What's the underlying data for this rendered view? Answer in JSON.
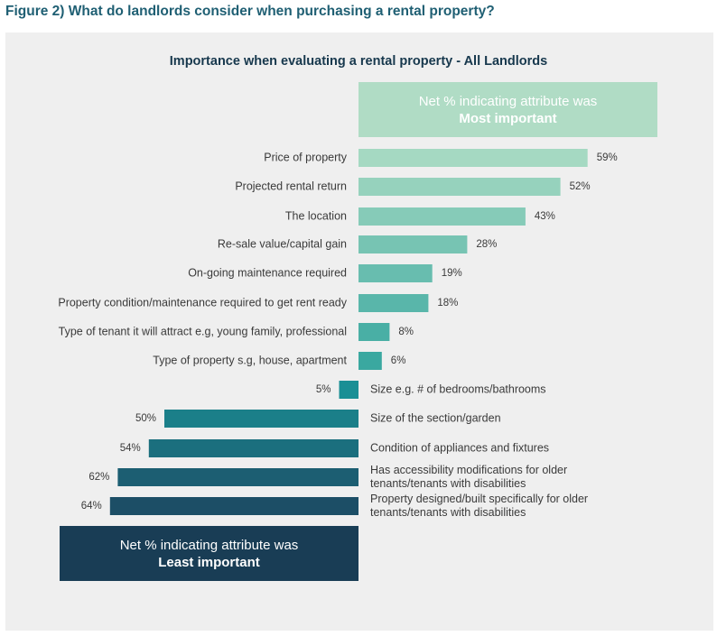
{
  "figure_title": "Figure 2) What do landlords consider when purchasing a rental property?",
  "chart_data": {
    "type": "bar",
    "orientation": "horizontal-diverging",
    "title": "Importance when evaluating a rental property - All Landlords",
    "legend": {
      "most_line1": "Net % indicating attribute was",
      "most_line2": "Most important",
      "least_line1": "Net % indicating attribute was",
      "least_line2": "Least important"
    },
    "unit": "%",
    "categories": [
      "Price of property",
      "Projected rental return",
      "The location",
      "Re-sale value/capital gain",
      "On-going maintenance required",
      "Property condition/maintenance required to get rent ready",
      "Type of tenant it will attract e.g, young family, professional",
      "Type of property s.g, house, apartment",
      "Size e.g. # of bedrooms/bathrooms",
      "Size of the section/garden",
      "Condition of appliances and fixtures",
      "Has accessibility modifications for older tenants/tenants with disabilities",
      "Property designed/built specifically for older tenants/tenants with disabilities"
    ],
    "values": [
      59,
      52,
      43,
      28,
      19,
      18,
      8,
      6,
      -5,
      -50,
      -54,
      -62,
      -64
    ],
    "colors": {
      "most_light": "#a5d9c2",
      "most_dark": "#3aa8a0",
      "least_light": "#1a8f95",
      "least_dark": "#1c4e66"
    }
  }
}
